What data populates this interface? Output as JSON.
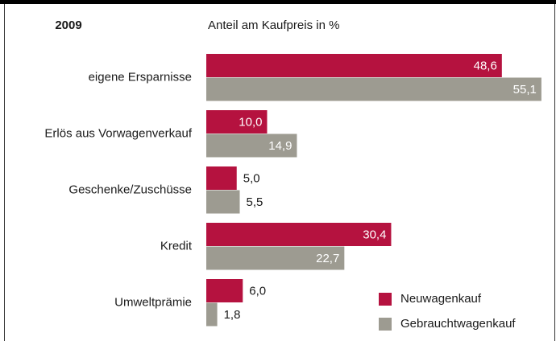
{
  "chart_data": {
    "type": "barh",
    "title": "2009",
    "subtitle": "Anteil am Kaufpreis in  %",
    "categories": [
      "eigene Ersparnisse",
      "Erlös aus Vorwagenverkauf",
      "Geschenke/Zuschüsse",
      "Kredit",
      "Umweltprämie"
    ],
    "series": [
      {
        "name": "Neuwagenkauf",
        "color": "#b5123f",
        "values": [
          48.6,
          10.0,
          5.0,
          30.4,
          6.0
        ],
        "value_labels": [
          "48,6",
          "10,0",
          "5,0",
          "30,4",
          "6,0"
        ]
      },
      {
        "name": "Gebrauchtwagenkauf",
        "color": "#9d9b91",
        "values": [
          55.1,
          14.9,
          5.5,
          22.7,
          1.8
        ],
        "value_labels": [
          "55,1",
          "14,9",
          "5,5",
          "22,7",
          "1,8"
        ]
      }
    ],
    "xlim": [
      0,
      57.5
    ],
    "legend": "lower right"
  }
}
